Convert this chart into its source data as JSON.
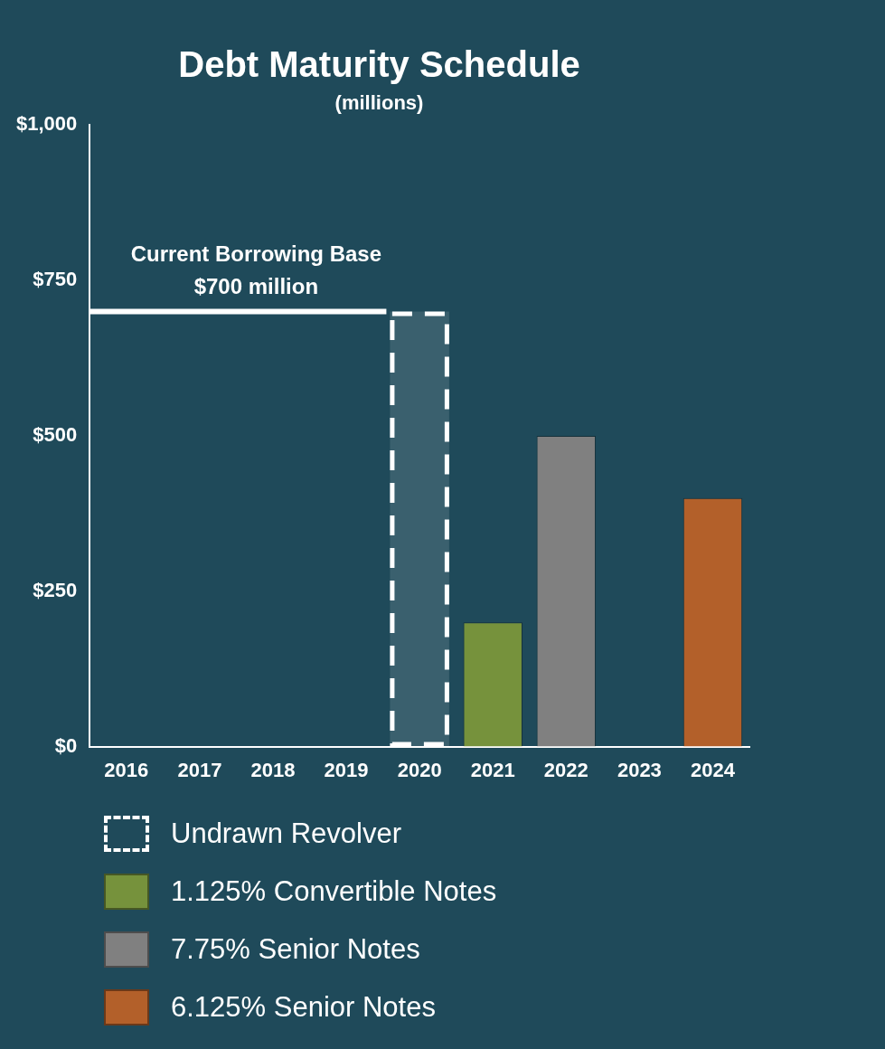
{
  "chart_data": {
    "type": "bar",
    "title": "Debt Maturity Schedule",
    "subtitle": "(millions)",
    "categories": [
      "2016",
      "2017",
      "2018",
      "2019",
      "2020",
      "2021",
      "2022",
      "2023",
      "2024"
    ],
    "series": [
      {
        "name": "Undrawn Revolver",
        "color": "#ffffff",
        "line_style": "dashed",
        "values": [
          null,
          null,
          null,
          null,
          700,
          null,
          null,
          null,
          null
        ]
      },
      {
        "name": "1.125% Convertible Notes",
        "color": "#76923c",
        "values": [
          null,
          null,
          null,
          null,
          null,
          200,
          null,
          null,
          null
        ]
      },
      {
        "name": "7.75% Senior Notes",
        "color": "#808080",
        "values": [
          null,
          null,
          null,
          null,
          null,
          null,
          500,
          null,
          null
        ]
      },
      {
        "name": "6.125% Senior Notes",
        "color": "#b3602a",
        "values": [
          null,
          null,
          null,
          null,
          null,
          null,
          null,
          null,
          400
        ]
      }
    ],
    "ylim": [
      0,
      1000
    ],
    "yticks": [
      {
        "value": 0,
        "label": "$0"
      },
      {
        "value": 250,
        "label": "$250"
      },
      {
        "value": 500,
        "label": "$500"
      },
      {
        "value": 750,
        "label": "$750"
      },
      {
        "value": 1000,
        "label": "$1,000"
      }
    ],
    "ref_lines": [
      {
        "axis": "y",
        "value": 700,
        "label": "Current Borrowing Base\n$700 million",
        "color": "#ffffff"
      }
    ],
    "grid": false,
    "legend": "bottom"
  }
}
